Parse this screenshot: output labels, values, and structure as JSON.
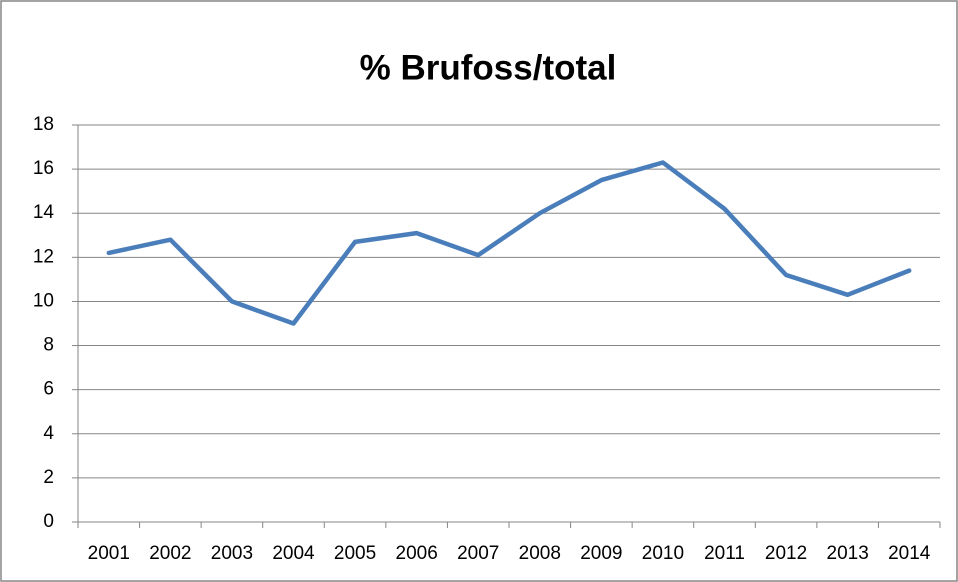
{
  "chart_data": {
    "type": "line",
    "title": "% Brufoss/total",
    "categories": [
      "2001",
      "2002",
      "2003",
      "2004",
      "2005",
      "2006",
      "2007",
      "2008",
      "2009",
      "2010",
      "2011",
      "2012",
      "2013",
      "2014"
    ],
    "values": [
      12.2,
      12.8,
      10.0,
      9.0,
      12.7,
      13.1,
      12.1,
      14.0,
      15.5,
      16.3,
      14.2,
      11.2,
      10.3,
      11.4
    ],
    "color": "#4a7ebb",
    "ylim": [
      0,
      18
    ],
    "yticks": [
      0,
      2,
      4,
      6,
      8,
      10,
      12,
      14,
      16,
      18
    ],
    "grid": true
  }
}
